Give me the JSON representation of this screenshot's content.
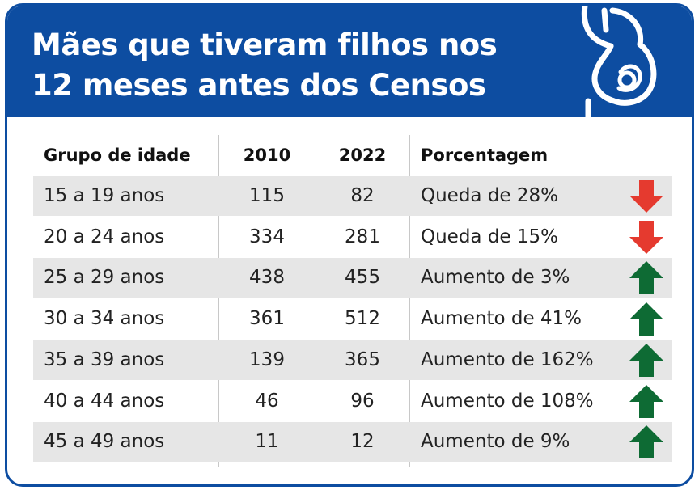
{
  "header": {
    "title_line1": "Mães que tiveram filhos nos",
    "title_line2": "12 meses antes dos Censos"
  },
  "table": {
    "columns": [
      "Grupo de idade",
      "2010",
      "2022",
      "Porcentagem"
    ],
    "rows": [
      {
        "group": "15 a 19 anos",
        "y2010": "115",
        "y2022": "82",
        "pct": "Queda de 28%",
        "trend": "down"
      },
      {
        "group": "20 a 24 anos",
        "y2010": "334",
        "y2022": "281",
        "pct": "Queda de 15%",
        "trend": "down"
      },
      {
        "group": "25 a 29 anos",
        "y2010": "438",
        "y2022": "455",
        "pct": "Aumento de 3%",
        "trend": "up"
      },
      {
        "group": "30 a 34 anos",
        "y2010": "361",
        "y2022": "512",
        "pct": "Aumento de 41%",
        "trend": "up"
      },
      {
        "group": "35 a 39 anos",
        "y2010": "139",
        "y2022": "365",
        "pct": "Aumento de 162%",
        "trend": "up"
      },
      {
        "group": "40 a 44 anos",
        "y2010": "46",
        "y2022": "96",
        "pct": "Aumento de 108%",
        "trend": "up"
      },
      {
        "group": "45 a 49 anos",
        "y2010": "11",
        "y2022": "12",
        "pct": "Aumento de 9%",
        "trend": "up"
      }
    ]
  },
  "colors": {
    "brand_blue": "#0d4da1",
    "row_shade": "#e6e6e6",
    "arrow_down": "#e53a2f",
    "arrow_up": "#0e6b34"
  },
  "icons": {
    "logo": "pregnant-woman-icon",
    "down": "arrow-down-icon",
    "up": "arrow-up-icon"
  },
  "chart_data": {
    "type": "table",
    "title": "Mães que tiveram filhos nos 12 meses antes dos Censos",
    "columns": [
      "Grupo de idade",
      "2010",
      "2022",
      "Porcentagem"
    ],
    "categories": [
      "15 a 19 anos",
      "20 a 24 anos",
      "25 a 29 anos",
      "30 a 34 anos",
      "35 a 39 anos",
      "40 a 44 anos",
      "45 a 49 anos"
    ],
    "series": [
      {
        "name": "2010",
        "values": [
          115,
          334,
          438,
          361,
          139,
          46,
          11
        ]
      },
      {
        "name": "2022",
        "values": [
          82,
          281,
          455,
          512,
          365,
          96,
          12
        ]
      }
    ],
    "change_percent": [
      -28,
      -15,
      3,
      41,
      162,
      108,
      9
    ]
  }
}
